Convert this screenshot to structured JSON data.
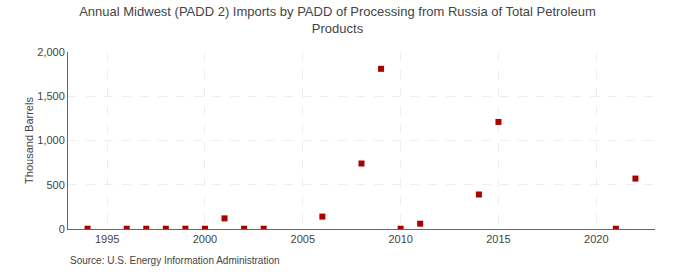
{
  "chart_data": {
    "type": "scatter",
    "title": "Annual Midwest (PADD 2) Imports by PADD of Processing from Russia of Total Petroleum\nProducts",
    "ylabel": "Thousand Barrels",
    "annotations": [
      "Source: U.S. Energy Information Administration"
    ],
    "x": [
      1994,
      1996,
      1997,
      1998,
      1999,
      2000,
      2001,
      2002,
      2003,
      2006,
      2008,
      2009,
      2010,
      2011,
      2014,
      2015,
      2021,
      2022
    ],
    "values": [
      3,
      3,
      3,
      3,
      3,
      3,
      120,
      3,
      3,
      140,
      740,
      1810,
      3,
      60,
      390,
      1210,
      3,
      570
    ],
    "color": "#aa0000",
    "marker": "square",
    "xlim": [
      1993,
      2023
    ],
    "xticks": [
      1995,
      2000,
      2005,
      2010,
      2015,
      2020
    ],
    "ylim": [
      0,
      2000
    ],
    "yticks": [
      0,
      500,
      {
        "value": 1000,
        "label": "1,000"
      },
      {
        "value": 1500,
        "label": "1,500"
      },
      {
        "value": 2000,
        "label": "2,000"
      }
    ],
    "grid": true
  }
}
